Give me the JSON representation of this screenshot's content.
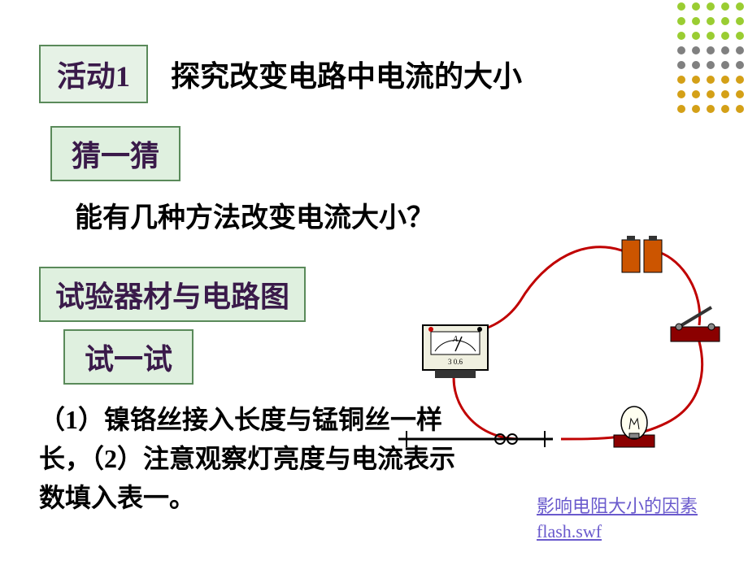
{
  "activity": {
    "label": "活动1",
    "title": "探究改变电路中电流的大小",
    "label_bg": "#e6f2e6",
    "label_border": "#5a8a5a"
  },
  "guess": {
    "label": "猜一猜"
  },
  "question": "能有几种方法改变电流大小？",
  "equipment": {
    "label": "试验器材与电路图"
  },
  "try": {
    "label": "试一试"
  },
  "body": "（1）镍铬丝接入长度与锰铜丝一样长，（2）注意观察灯亮度与电流表示数填入表一。",
  "link": "影响电阻大小的因素 flash.swf",
  "dots": {
    "colors": [
      "#9acd32",
      "#808080",
      "#d4a017"
    ],
    "cols": 5,
    "rows": 8,
    "spacing": 18,
    "radius": 5
  },
  "circuit": {
    "wire_color": "#c00000",
    "wire_width": 3,
    "battery": {
      "body": "#cc5500",
      "cap": "#333333"
    },
    "ammeter": {
      "body": "#f0f0e0",
      "border": "#000000",
      "label": "A",
      "scale": "3 0.6"
    },
    "switch": {
      "base": "#8b0000",
      "lever": "#333333"
    },
    "bulb": {
      "base": "#8b0000",
      "glass": "#fffff0"
    },
    "resistor": {
      "color": "#000000"
    }
  }
}
